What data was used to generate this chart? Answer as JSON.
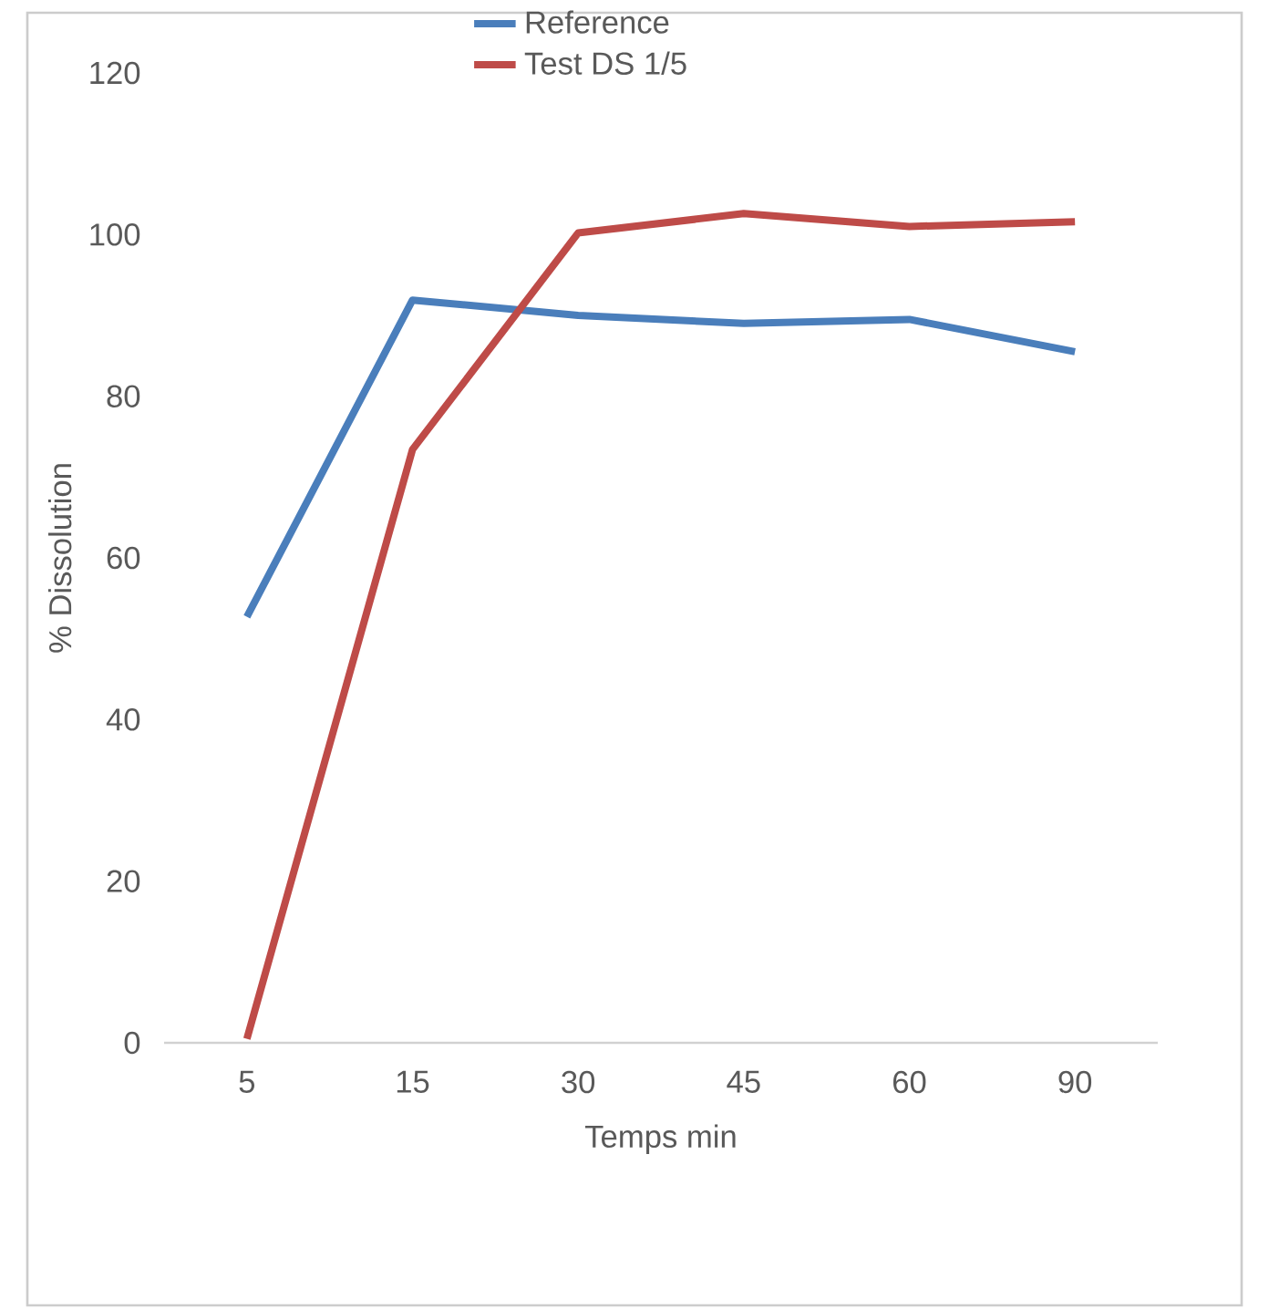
{
  "chart_data": {
    "type": "line",
    "xlabel": "Temps min",
    "ylabel": "% Dissolution",
    "categories": [
      "5",
      "15",
      "30",
      "45",
      "60",
      "90"
    ],
    "series": [
      {
        "name": "Reference",
        "color": "#4a7ebb",
        "values": [
          52.7,
          91.9,
          90.0,
          89.0,
          89.5,
          85.5
        ]
      },
      {
        "name": "Test DS 1/5",
        "color": "#be4b48",
        "values": [
          0.5,
          73.4,
          100.2,
          102.6,
          101.0,
          101.6
        ]
      }
    ],
    "ylim": [
      0,
      120
    ],
    "yticks": [
      0,
      20,
      40,
      60,
      80,
      100,
      120
    ],
    "legend": "top",
    "marker": "none",
    "line_style": "solid"
  }
}
